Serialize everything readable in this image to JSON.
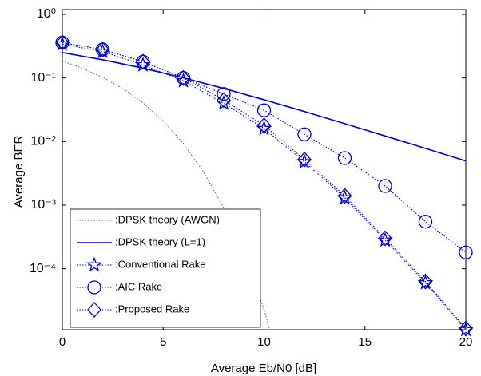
{
  "chart_data": {
    "type": "line",
    "xlabel": "Average Eb/N0 [dB]",
    "ylabel": "Average BER",
    "xlim": [
      0,
      20
    ],
    "xticks": [
      0,
      5,
      10,
      15,
      20
    ],
    "ylim": [
      1.1e-05,
      1
    ],
    "yscale": "log",
    "yticks": [
      {
        "value": 1,
        "label": "10⁰"
      },
      {
        "value": 0.1,
        "label": "10⁻¹"
      },
      {
        "value": 0.01,
        "label": "10⁻²"
      },
      {
        "value": 0.001,
        "label": "10⁻³"
      },
      {
        "value": 0.0001,
        "label": "10⁻⁴"
      }
    ],
    "grid": false,
    "legend": "lower left",
    "series": [
      {
        "name": ":DPSK theory (AWGN)",
        "color": "#5555dd",
        "dash": "dotted",
        "marker": "none",
        "x": [
          0,
          1,
          2,
          3,
          4,
          5,
          6,
          7,
          8,
          9,
          10,
          11
        ],
        "values": [
          0.1839,
          0.142,
          0.1025,
          0.068,
          0.0406,
          0.02116,
          0.00933,
          0.003327,
          0.000909,
          0.0001774,
          2.27e-05,
          1.7e-06
        ]
      },
      {
        "name": ":DPSK theory (L=1)",
        "color": "#0000cc",
        "dash": "solid",
        "marker": "none",
        "x": [
          0,
          2,
          4,
          6,
          8,
          10,
          12,
          14,
          16,
          18,
          20
        ],
        "values": [
          0.25,
          0.1934,
          0.1424,
          0.1004,
          0.0684,
          0.04545,
          0.02967,
          0.01914,
          0.01225,
          0.0078,
          0.00495
        ]
      },
      {
        "name": ":Conventional Rake",
        "color": "#0000cc",
        "dash": "dotted",
        "marker": "star",
        "x": [
          0,
          2,
          4,
          6,
          8,
          10,
          12,
          14,
          16,
          18,
          20
        ],
        "values": [
          0.34,
          0.26,
          0.16,
          0.09,
          0.04,
          0.016,
          0.0048,
          0.0013,
          0.00028,
          6e-05,
          1.1e-05
        ]
      },
      {
        "name": ":AIC Rake",
        "color": "#0000cc",
        "dash": "dotted",
        "marker": "circle",
        "x": [
          0,
          2,
          4,
          6,
          8,
          10,
          12,
          14,
          16,
          18,
          20
        ],
        "values": [
          0.36,
          0.28,
          0.18,
          0.1,
          0.056,
          0.031,
          0.013,
          0.0055,
          0.002,
          0.00055,
          0.00018
        ]
      },
      {
        "name": ":Proposed Rake",
        "color": "#0000cc",
        "dash": "dotted",
        "marker": "diamond",
        "x": [
          0,
          2,
          4,
          6,
          8,
          10,
          12,
          14,
          16,
          18,
          20
        ],
        "values": [
          0.36,
          0.28,
          0.18,
          0.1,
          0.045,
          0.018,
          0.0052,
          0.0014,
          0.0003,
          6.3e-05,
          1.15e-05
        ]
      }
    ]
  }
}
